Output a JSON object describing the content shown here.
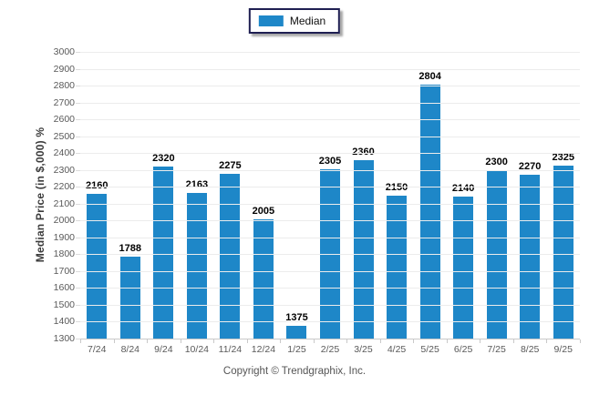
{
  "legend": {
    "position": "top-center"
  },
  "footer": {
    "text": "Copyright © Trendgraphix, Inc."
  },
  "chart_data": {
    "type": "bar",
    "title": "",
    "xlabel": "",
    "ylabel": "Median Price (in $,000) %",
    "categories": [
      "7/24",
      "8/24",
      "9/24",
      "10/24",
      "11/24",
      "12/24",
      "1/25",
      "2/25",
      "3/25",
      "4/25",
      "5/25",
      "6/25",
      "7/25",
      "8/25",
      "9/25"
    ],
    "series": [
      {
        "name": "Median",
        "color": "#1e87c8",
        "values": [
          2160,
          1788,
          2320,
          2163,
          2275,
          2005,
          1375,
          2305,
          2360,
          2150,
          2804,
          2140,
          2300,
          2270,
          2325
        ]
      }
    ],
    "ylim": [
      1300,
      3000
    ],
    "ytick_step": 100,
    "grid": true,
    "gridline_color": "#ececec",
    "legend_position": "top-center",
    "value_labels": true
  }
}
